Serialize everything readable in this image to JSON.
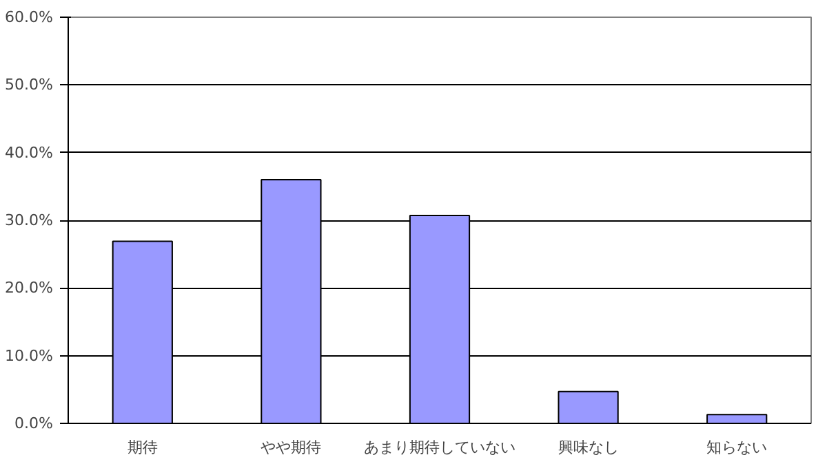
{
  "chart_data": {
    "type": "bar",
    "categories": [
      "期待",
      "やや期待",
      "あまり期待していない",
      "興味なし",
      "知らない"
    ],
    "values": [
      26.9,
      36.0,
      30.7,
      4.7,
      1.3
    ],
    "color": "#9999ff",
    "ylim": [
      0,
      60
    ],
    "yticks": [
      {
        "value": 0,
        "label": "0.0%"
      },
      {
        "value": 10,
        "label": "10.0%"
      },
      {
        "value": 20,
        "label": "20.0%"
      },
      {
        "value": 30,
        "label": "30.0%"
      },
      {
        "value": 40,
        "label": "40.0%"
      },
      {
        "value": 50,
        "label": "50.0%"
      },
      {
        "value": 60,
        "label": "60.0%"
      }
    ],
    "grid": "y"
  }
}
